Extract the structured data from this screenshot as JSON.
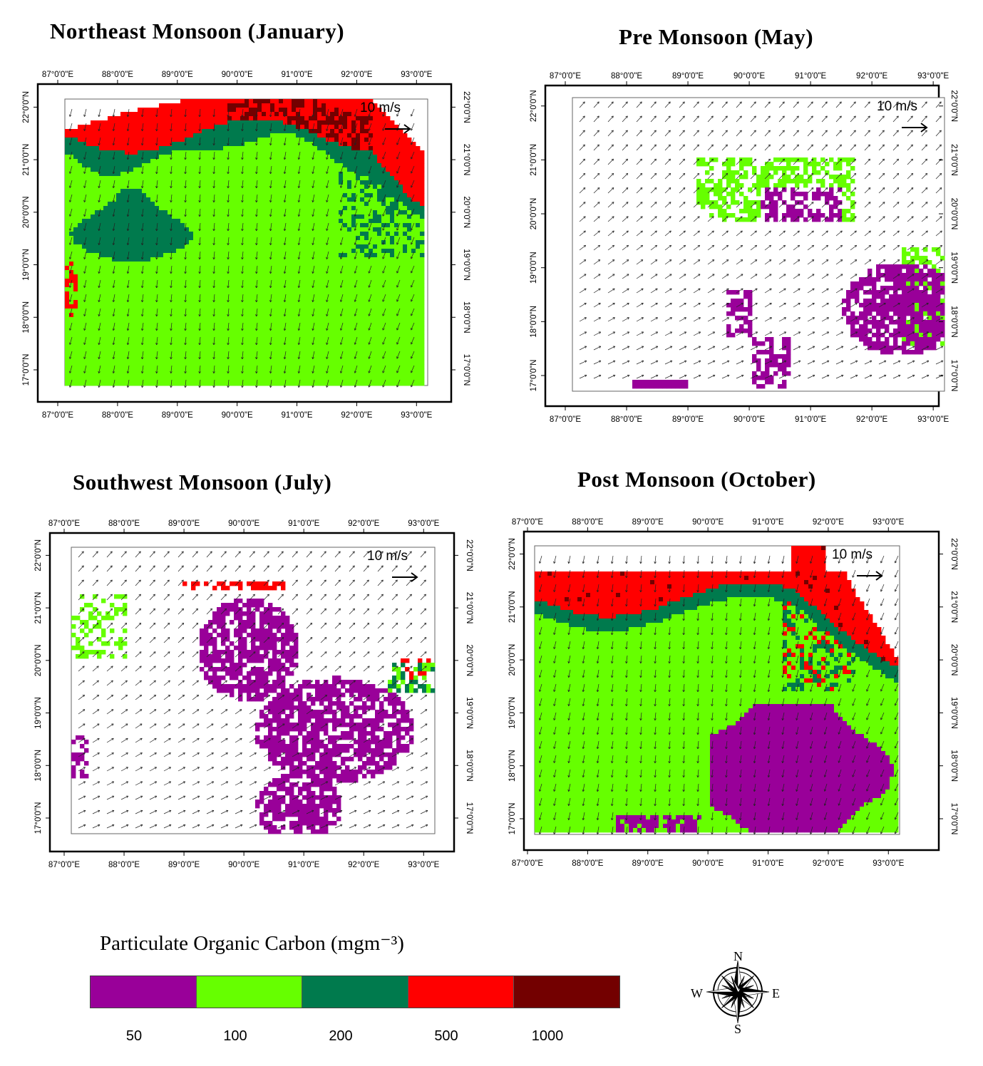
{
  "panels": [
    {
      "id": "jan",
      "title": "Northeast Monsoon (January)",
      "scale_label": "10 m/s",
      "fill": "full-green",
      "base": [
        0,
        1,
        0
      ],
      "north": [
        [
          0,
          0.68
        ],
        [
          0.1,
          0.68
        ],
        [
          0.22,
          0.78
        ],
        [
          0.4,
          0.8
        ],
        [
          0.6,
          0.85
        ],
        [
          0.75,
          0.75
        ],
        [
          0.85,
          0.55
        ],
        [
          0.92,
          0.4
        ],
        [
          0.97,
          0.3
        ],
        [
          1,
          0.25
        ]
      ],
      "top_band": [
        [
          0,
          1.1
        ],
        [
          0.12,
          1.12
        ],
        [
          0.2,
          1.05
        ],
        [
          0.35,
          1.1
        ],
        [
          0.5,
          1.2
        ],
        [
          0.65,
          1.3
        ],
        [
          0.75,
          1.2
        ],
        [
          0.85,
          1.0
        ],
        [
          0.9,
          0.8
        ],
        [
          1,
          0.4
        ]
      ],
      "dark_zone": [
        0.42,
        0.78,
        0.85,
        1.05
      ],
      "purple_blobs": [],
      "tags": [
        "red-north",
        "darkred-band",
        "green-main",
        "teal-bay",
        "teal-west"
      ]
    },
    {
      "id": "may",
      "title": "Pre Monsoon (May)",
      "scale_label": "10 m/s",
      "fill": "sparse",
      "tags": [
        "green-north",
        "purple-patches"
      ]
    },
    {
      "id": "jul",
      "title": "Southwest Monsoon (July)",
      "scale_label": "10 m/s",
      "fill": "sparse",
      "tags": [
        "purple-many",
        "red-north-small"
      ]
    },
    {
      "id": "oct",
      "title": "Post Monsoon (October)",
      "scale_label": "10 m/s",
      "fill": "full-green",
      "tags": [
        "red-north",
        "teal-band",
        "purple-southeast"
      ]
    }
  ],
  "lon_labels": [
    "87°0'0\"E",
    "88°0'0\"E",
    "89°0'0\"E",
    "90°0'0\"E",
    "91°0'0\"E",
    "92°0'0\"E",
    "93°0'0\"E"
  ],
  "lat_labels": [
    "17°0'0\"N",
    "18°0'0\"N",
    "19°0'0\"N",
    "20°0'0\"N",
    "21°0'0\"N",
    "22°0'0\"N"
  ],
  "legend": {
    "title": "Particulate Organic Carbon (mgm⁻³)",
    "classes": [
      {
        "label": "50",
        "color": "#990099"
      },
      {
        "label": "100",
        "color": "#66ff00"
      },
      {
        "label": "200",
        "color": "#007a4d"
      },
      {
        "label": "500",
        "color": "#ff0000"
      },
      {
        "label": "1000",
        "color": "#730000"
      }
    ]
  },
  "compass": {
    "n": "N",
    "s": "S",
    "e": "E",
    "w": "W"
  }
}
